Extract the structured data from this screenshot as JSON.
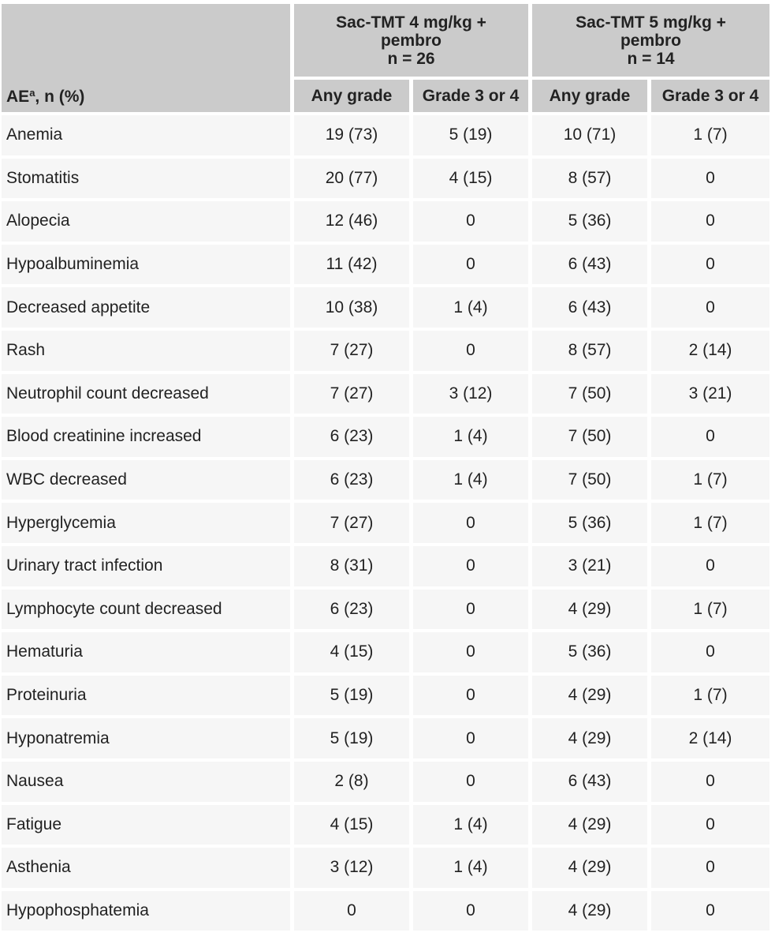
{
  "table": {
    "ae_header": "AE",
    "ae_header_sup": "a",
    "ae_header_suffix": ", n (%)",
    "groups": [
      {
        "line1": "Sac-TMT 4 mg/kg +",
        "line2": "pembro",
        "line3": "n = 26"
      },
      {
        "line1": "Sac-TMT 5 mg/kg +",
        "line2": "pembro",
        "line3": "n = 14"
      }
    ],
    "subheaders": [
      "Any grade",
      "Grade 3 or 4",
      "Any grade",
      "Grade 3 or 4"
    ],
    "rows": [
      {
        "ae": "Anemia",
        "v": [
          "19 (73)",
          "5 (19)",
          "10 (71)",
          "1 (7)"
        ]
      },
      {
        "ae": "Stomatitis",
        "v": [
          "20 (77)",
          "4 (15)",
          "8 (57)",
          "0"
        ]
      },
      {
        "ae": "Alopecia",
        "v": [
          "12 (46)",
          "0",
          "5 (36)",
          "0"
        ]
      },
      {
        "ae": "Hypoalbuminemia",
        "v": [
          "11 (42)",
          "0",
          "6 (43)",
          "0"
        ]
      },
      {
        "ae": "Decreased appetite",
        "v": [
          "10 (38)",
          "1 (4)",
          "6 (43)",
          "0"
        ]
      },
      {
        "ae": "Rash",
        "v": [
          "7 (27)",
          "0",
          "8 (57)",
          "2 (14)"
        ]
      },
      {
        "ae": "Neutrophil count decreased",
        "v": [
          "7 (27)",
          "3 (12)",
          "7 (50)",
          "3 (21)"
        ]
      },
      {
        "ae": "Blood creatinine increased",
        "v": [
          "6 (23)",
          "1 (4)",
          "7 (50)",
          "0"
        ]
      },
      {
        "ae": "WBC decreased",
        "v": [
          "6 (23)",
          "1 (4)",
          "7 (50)",
          "1 (7)"
        ]
      },
      {
        "ae": "Hyperglycemia",
        "v": [
          "7 (27)",
          "0",
          "5 (36)",
          "1 (7)"
        ]
      },
      {
        "ae": "Urinary tract infection",
        "v": [
          "8 (31)",
          "0",
          "3 (21)",
          "0"
        ]
      },
      {
        "ae": "Lymphocyte count decreased",
        "v": [
          "6 (23)",
          "0",
          "4 (29)",
          "1 (7)"
        ]
      },
      {
        "ae": "Hematuria",
        "v": [
          "4 (15)",
          "0",
          "5 (36)",
          "0"
        ]
      },
      {
        "ae": "Proteinuria",
        "v": [
          "5 (19)",
          "0",
          "4 (29)",
          "1 (7)"
        ]
      },
      {
        "ae": "Hyponatremia",
        "v": [
          "5 (19)",
          "0",
          "4 (29)",
          "2 (14)"
        ]
      },
      {
        "ae": "Nausea",
        "v": [
          "2 (8)",
          "0",
          "6 (43)",
          "0"
        ]
      },
      {
        "ae": "Fatigue",
        "v": [
          "4 (15)",
          "1 (4)",
          "4 (29)",
          "0"
        ]
      },
      {
        "ae": "Asthenia",
        "v": [
          "3 (12)",
          "1 (4)",
          "4 (29)",
          "0"
        ]
      },
      {
        "ae": "Hypophosphatemia",
        "v": [
          "0",
          "0",
          "4 (29)",
          "0"
        ]
      }
    ]
  }
}
